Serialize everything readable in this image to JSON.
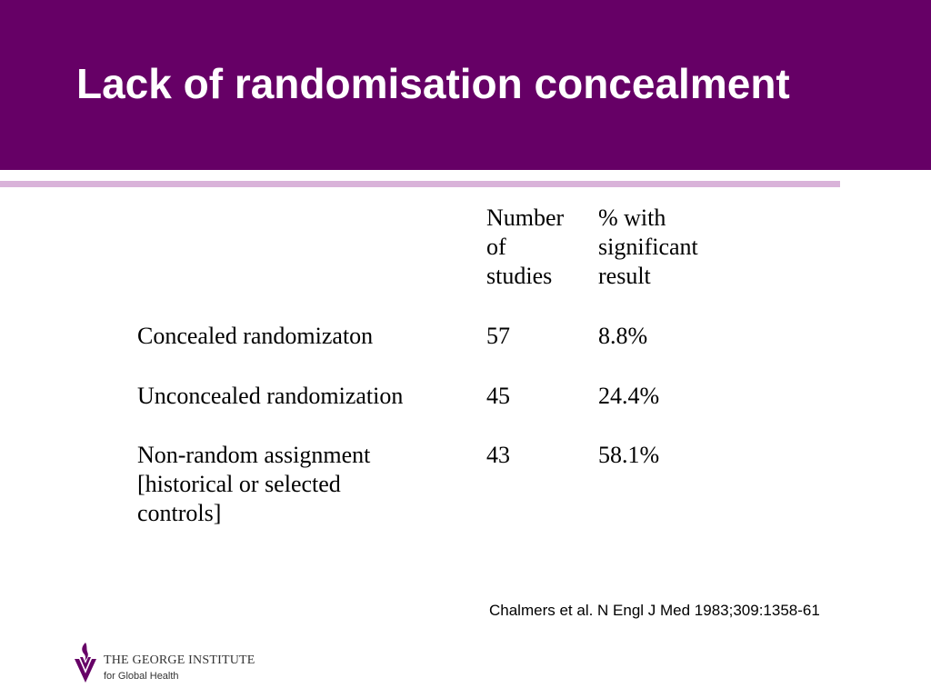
{
  "slide": {
    "title": "Lack of randomisation concealment"
  },
  "table": {
    "headers": [
      "",
      "Number\nof\nstudies",
      "% with\nsignificant\nresult"
    ],
    "rows": [
      {
        "label": "Concealed randomizaton",
        "studies": "57",
        "percent": "8.8%"
      },
      {
        "label": "Unconcealed randomization",
        "studies": "45",
        "percent": "24.4%"
      },
      {
        "label": "Non-random assignment\n[historical or selected\ncontrols]",
        "studies": "43",
        "percent": "58.1%"
      }
    ]
  },
  "citation": "Chalmers et al. N Engl J Med 1983;309:1358-61",
  "logo": {
    "line1": "THE GEORGE INSTITUTE",
    "line2": "for Global Health",
    "icon": "george-institute-emblem"
  },
  "colors": {
    "header": "#660066",
    "rule": "#d9b3d9",
    "logo_mark": "#660066"
  }
}
